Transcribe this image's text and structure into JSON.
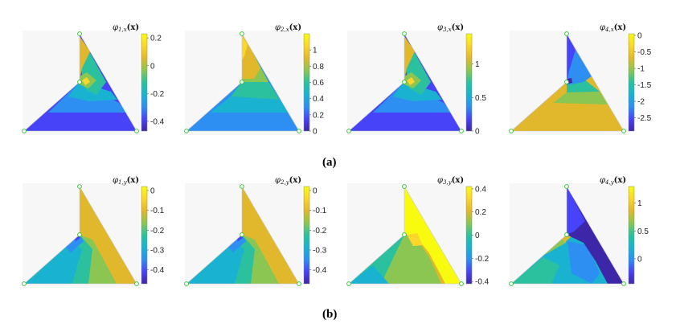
{
  "row_labels": {
    "a": "(a)",
    "b": "(b)"
  },
  "colormap": [
    "#3e26a8",
    "#4743f8",
    "#2d8ff2",
    "#1ab2d1",
    "#2bc19e",
    "#8bc653",
    "#e1b82c",
    "#fbd62b",
    "#f9fb0e"
  ],
  "panels": [
    {
      "id": "p1x",
      "title": "φ1,x(x)",
      "title_main": "φ",
      "title_sub": "1,x",
      "title_arg": "(x)",
      "colorbar": {
        "min": -0.47,
        "max": 0.23,
        "ticks": [
          0.2,
          0,
          -0.2,
          -0.4
        ],
        "tick_labels": [
          "0.2",
          "0",
          "-0.2",
          "-0.4"
        ]
      }
    },
    {
      "id": "p2x",
      "title": "φ2,x(x)",
      "title_main": "φ",
      "title_sub": "2,x",
      "title_arg": "(x)",
      "colorbar": {
        "min": 0.0,
        "max": 1.2,
        "ticks": [
          1,
          0.8,
          0.6,
          0.4,
          0.2,
          0
        ],
        "tick_labels": [
          "1",
          "0.8",
          "0.6",
          "0.4",
          "0.2",
          "0"
        ]
      }
    },
    {
      "id": "p3x",
      "title": "φ3,x(x)",
      "title_main": "φ",
      "title_sub": "3,x",
      "title_arg": "(x)",
      "colorbar": {
        "min": 0.0,
        "max": 1.45,
        "ticks": [
          1,
          0.5,
          0
        ],
        "tick_labels": [
          "1",
          "0.5",
          "0"
        ]
      }
    },
    {
      "id": "p4x",
      "title": "φ4,x(x)",
      "title_main": "φ",
      "title_sub": "4,x",
      "title_arg": "(x)",
      "colorbar": {
        "min": -2.9,
        "max": 0.05,
        "ticks": [
          0,
          -0.5,
          -1,
          -1.5,
          -2,
          -2.5
        ],
        "tick_labels": [
          "0",
          "-0.5",
          "-1",
          "-1.5",
          "-2",
          "-2.5"
        ]
      }
    },
    {
      "id": "p1y",
      "title": "φ1,y(x)",
      "title_main": "φ",
      "title_sub": "1,y",
      "title_arg": "(x)",
      "colorbar": {
        "min": -0.47,
        "max": 0.02,
        "ticks": [
          0,
          -0.1,
          -0.2,
          -0.3,
          -0.4
        ],
        "tick_labels": [
          "0",
          "-0.1",
          "-0.2",
          "-0.3",
          "-0.4"
        ]
      }
    },
    {
      "id": "p2y",
      "title": "φ2,y(x)",
      "title_main": "φ",
      "title_sub": "2,y",
      "title_arg": "(x)",
      "colorbar": {
        "min": -0.47,
        "max": 0.02,
        "ticks": [
          0,
          -0.1,
          -0.2,
          -0.3,
          -0.4
        ],
        "tick_labels": [
          "0",
          "-0.1",
          "-0.2",
          "-0.3",
          "-0.4"
        ]
      }
    },
    {
      "id": "p3y",
      "title": "φ3,y(x)",
      "title_main": "φ",
      "title_sub": "3,y",
      "title_arg": "(x)",
      "colorbar": {
        "min": -0.42,
        "max": 0.42,
        "ticks": [
          0.4,
          0.2,
          0,
          -0.2,
          -0.4
        ],
        "tick_labels": [
          "0.4",
          "0.2",
          "0",
          "-0.2",
          "-0.4"
        ]
      }
    },
    {
      "id": "p4y",
      "title": "φ4,y(x)",
      "title_main": "φ",
      "title_sub": "4,y",
      "title_arg": "(x)",
      "colorbar": {
        "min": -0.45,
        "max": 1.3,
        "ticks": [
          1,
          0.5,
          0
        ],
        "tick_labels": [
          "1",
          "0.5",
          "0"
        ]
      }
    }
  ]
}
